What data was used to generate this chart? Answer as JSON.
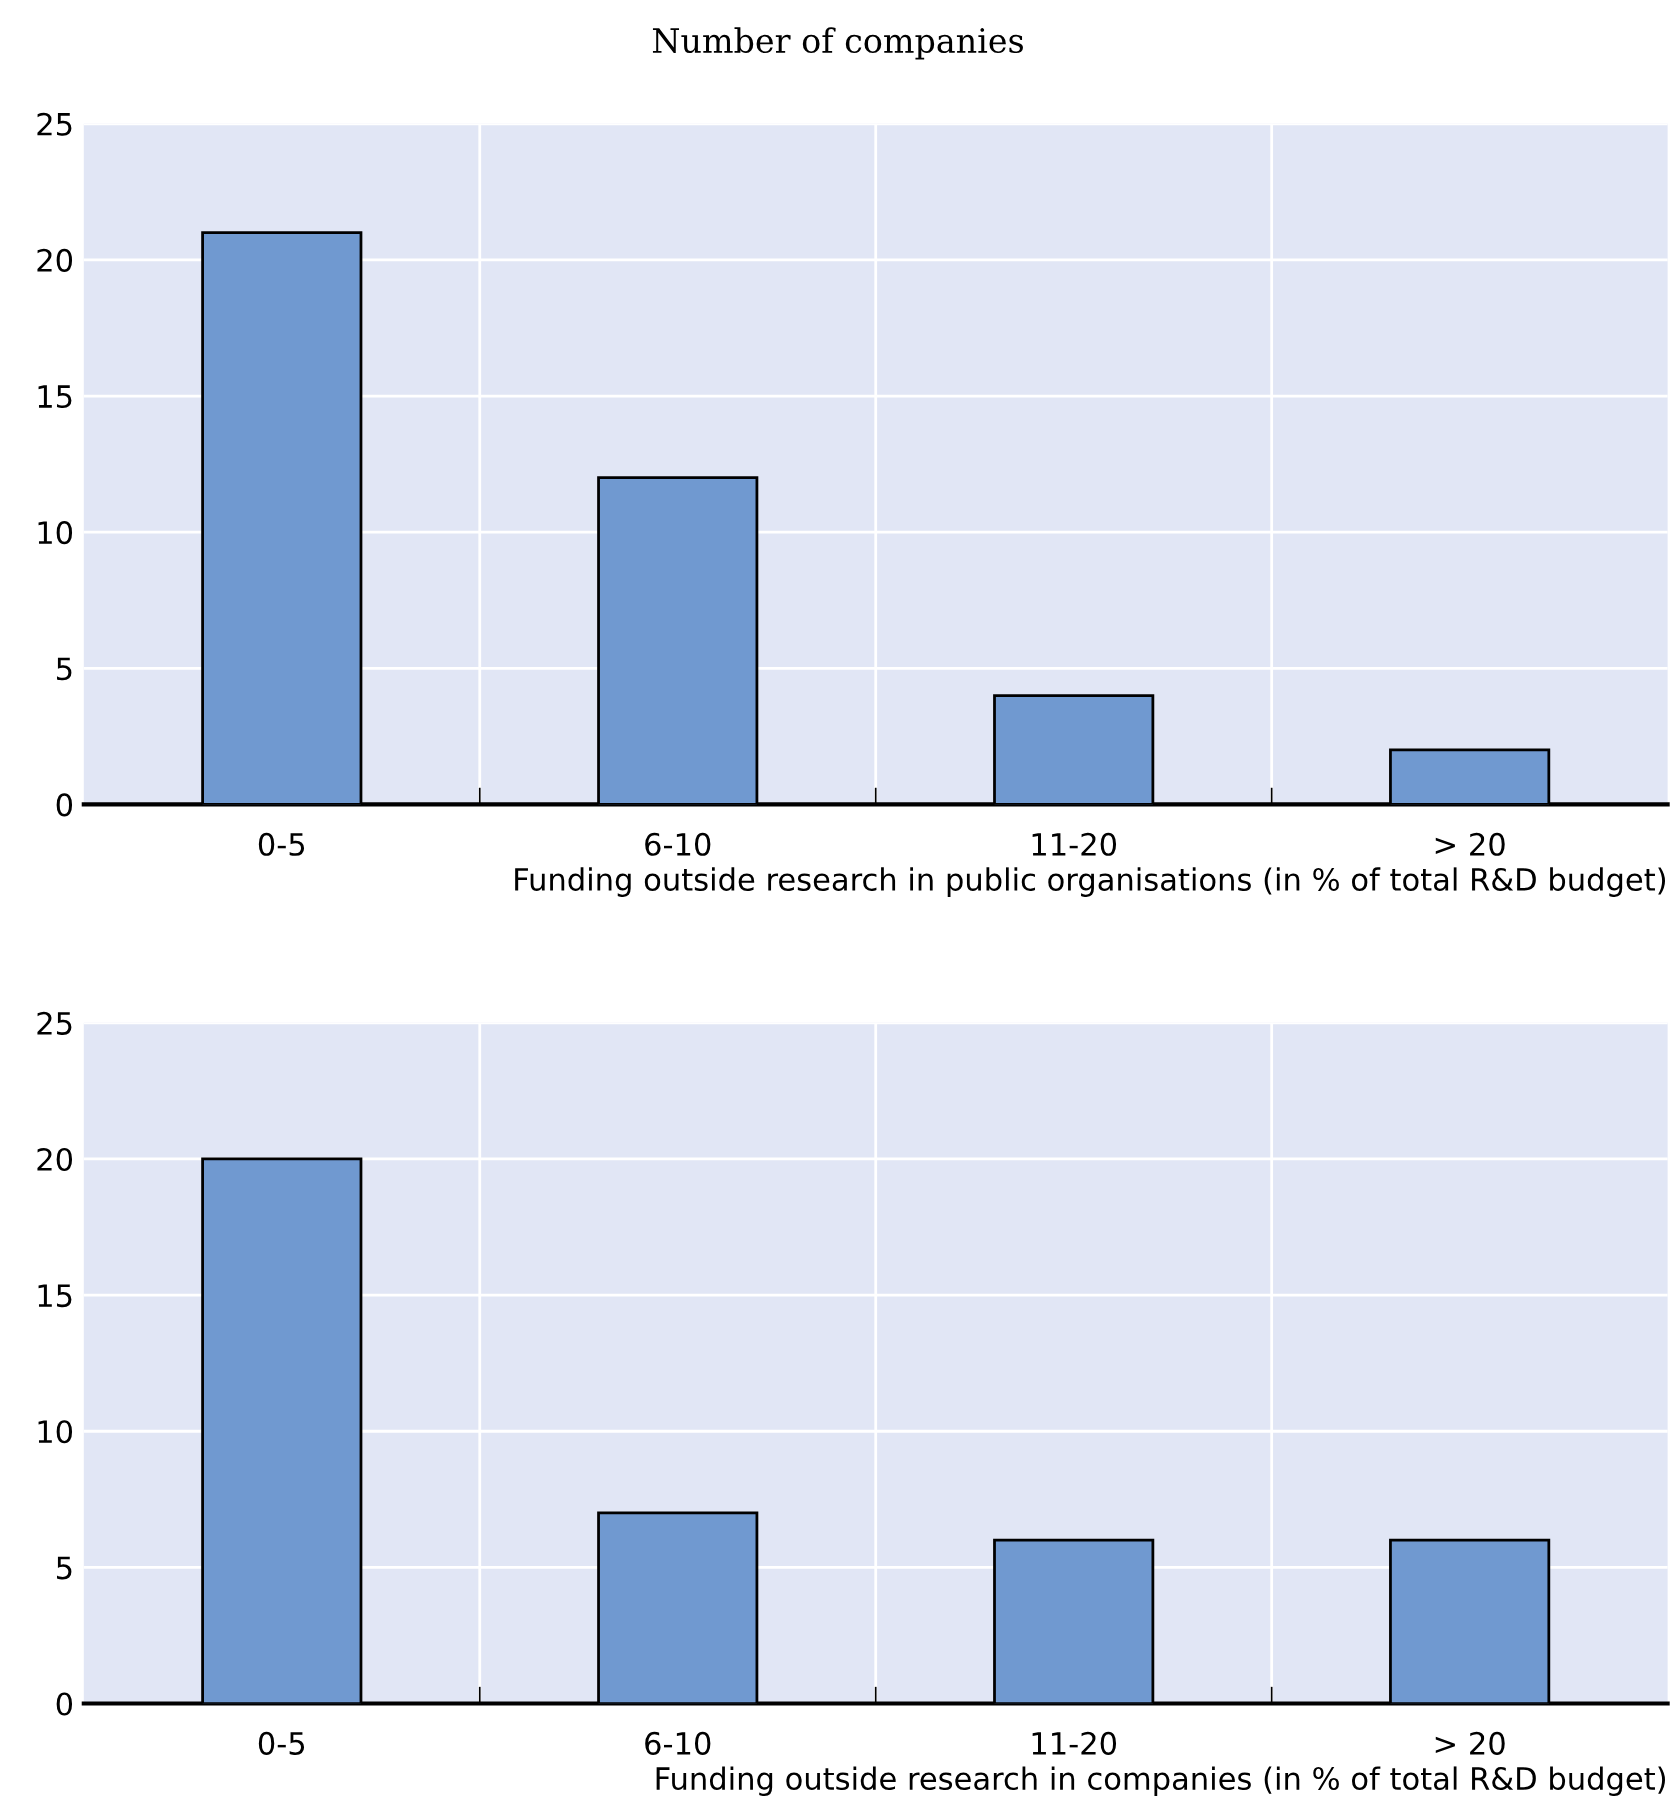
{
  "chart_data": [
    {
      "type": "bar",
      "subtitle": "Number of companies",
      "categories": [
        "0-5",
        "6-10",
        "11-20",
        "> 20"
      ],
      "values": [
        21,
        12,
        4,
        2
      ],
      "color": "#7099d0",
      "ylim": [
        0,
        25
      ],
      "yticks": [
        0,
        5,
        10,
        15,
        20,
        25
      ],
      "grid": true,
      "xlabel": "Funding outside research in public organisations (in % of total R&D budget)"
    },
    {
      "type": "bar",
      "categories": [
        "0-5",
        "6-10",
        "11-20",
        "> 20"
      ],
      "values": [
        20,
        7,
        6,
        6
      ],
      "color": "#7099d0",
      "ylim": [
        0,
        25
      ],
      "yticks": [
        0,
        5,
        10,
        15,
        20,
        25
      ],
      "grid": true,
      "xlabel": "Funding outside research in companies (in % of total R&D budget)"
    }
  ]
}
